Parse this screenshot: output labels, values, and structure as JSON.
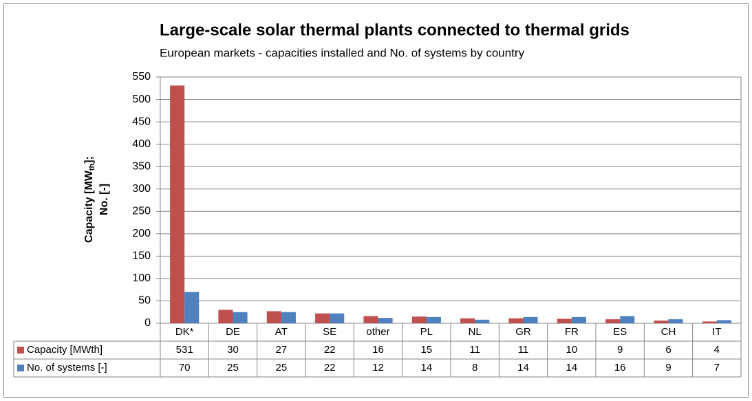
{
  "chart_data": {
    "type": "bar",
    "title": "Large-scale solar thermal plants connected to thermal grids",
    "subtitle": "European markets - capacities installed and No. of systems by country",
    "y_label": {
      "line1": [
        "Capacity [MW",
        "th",
        "];"
      ],
      "line2": "No. [-]"
    },
    "categories": [
      "DK*",
      "DE",
      "AT",
      "SE",
      "other",
      "PL",
      "NL",
      "GR",
      "FR",
      "ES",
      "CH",
      "IT"
    ],
    "series": [
      {
        "name": "Capacity [MWth]",
        "color": "#c0504d",
        "values": [
          531,
          30,
          27,
          22,
          16,
          15,
          11,
          11,
          10,
          9,
          6,
          4
        ]
      },
      {
        "name": "No. of systems [-]",
        "color": "#4f81bd",
        "values": [
          70,
          25,
          25,
          22,
          12,
          14,
          8,
          14,
          14,
          16,
          9,
          7
        ]
      }
    ],
    "ylim": [
      0,
      550
    ],
    "yticks": [
      0,
      50,
      100,
      150,
      200,
      250,
      300,
      350,
      400,
      450,
      500,
      550
    ],
    "grid": true,
    "data_table": true
  }
}
